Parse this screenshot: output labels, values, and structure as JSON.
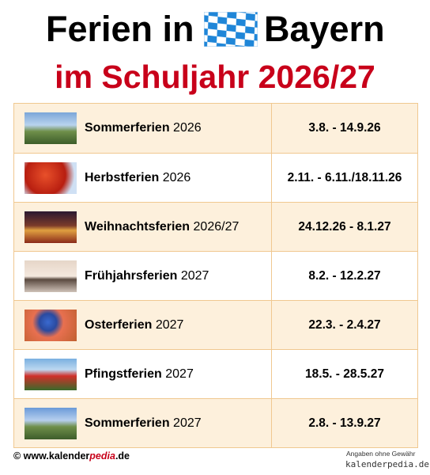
{
  "header": {
    "title_start": "Ferien in",
    "title_end": "Bayern",
    "subtitle": "im Schuljahr 2026/27"
  },
  "table": {
    "rows": [
      {
        "name": "Sommerferien",
        "year": "2026",
        "dates": "3.8. - 14.9.26"
      },
      {
        "name": "Herbstferien",
        "year": "2026",
        "dates": "2.11. - 6.11./18.11.26"
      },
      {
        "name": "Weihnachtsferien",
        "year": "2026/27",
        "dates": "24.12.26 - 8.1.27"
      },
      {
        "name": "Frühjahrsferien",
        "year": "2027",
        "dates": "8.2. - 12.2.27"
      },
      {
        "name": "Osterferien",
        "year": "2027",
        "dates": "22.3. - 2.4.27"
      },
      {
        "name": "Pfingstferien",
        "year": "2027",
        "dates": "18.5. - 28.5.27"
      },
      {
        "name": "Sommerferien",
        "year": "2027",
        "dates": "2.8. - 13.9.27"
      }
    ]
  },
  "footer": {
    "copyright": "© www.",
    "brand_a": "kalender",
    "brand_b": "pedia",
    "brand_tld": ".de",
    "disclaimer": "Angaben ohne Gewähr",
    "watermark": "kalenderpedia.de"
  }
}
